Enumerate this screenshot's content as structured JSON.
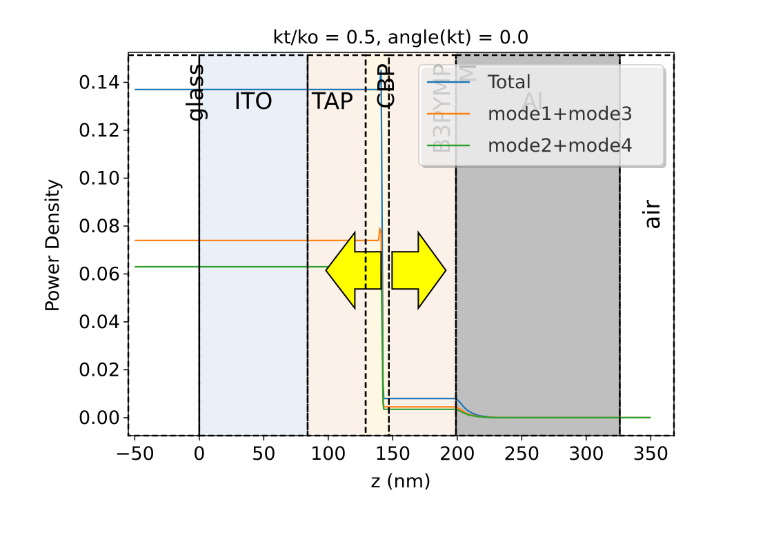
{
  "chart_data": {
    "type": "line",
    "title": "kt/ko = 0.5, angle(kt) = 0.0",
    "xlabel": "z (nm)",
    "ylabel": "Power Density",
    "xlim": [
      -55,
      368
    ],
    "ylim": [
      -0.0075,
      0.1525
    ],
    "xticks": [
      -50,
      0,
      50,
      100,
      150,
      200,
      250,
      300,
      350
    ],
    "xtick_labels": [
      "−50",
      "0",
      "50",
      "100",
      "150",
      "200",
      "250",
      "300",
      "350"
    ],
    "yticks": [
      0.0,
      0.02,
      0.04,
      0.06,
      0.08,
      0.1,
      0.12,
      0.14
    ],
    "ytick_labels": [
      "0.00",
      "0.02",
      "0.04",
      "0.06",
      "0.08",
      "0.10",
      "0.12",
      "0.14"
    ],
    "grid": false,
    "legend": {
      "position": "top-right",
      "entries": [
        "Total",
        "mode1+mode3",
        "mode2+mode4"
      ]
    },
    "layers": [
      {
        "name": "glass",
        "start": -55,
        "end": 0,
        "color": "#ffffff",
        "label_orientation": "vertical"
      },
      {
        "name": "ITO",
        "start": 0,
        "end": 84,
        "color": "#eaf0f8",
        "label_orientation": "horizontal"
      },
      {
        "name": "TAPC",
        "display": "TAP",
        "start": 84,
        "end": 129,
        "color": "#fcf1e9",
        "label_orientation": "horizontal"
      },
      {
        "name": "CBP",
        "start": 129,
        "end": 147,
        "color": "#fdf7e4",
        "label_orientation": "vertical"
      },
      {
        "name": "B3PYMPM",
        "display_lines": [
          "B3PYMP",
          "M"
        ],
        "start": 147,
        "end": 199,
        "color": "#fcf1e9",
        "label_orientation": "vertical"
      },
      {
        "name": "Al",
        "start": 199,
        "end": 326,
        "color": "#bfbfbf",
        "label_orientation": "horizontal"
      },
      {
        "name": "air",
        "start": 326,
        "end": 368,
        "color": "#ffffff",
        "label_orientation": "vertical"
      }
    ],
    "series": [
      {
        "name": "Total",
        "color": "#1f77b4",
        "x": [
          -50,
          139,
          140,
          141,
          142,
          142.5,
          143,
          199,
          202,
          205,
          208,
          212,
          216,
          220,
          225,
          230,
          240,
          260,
          350
        ],
        "y": [
          0.137,
          0.137,
          0.14,
          0.145,
          0.06,
          0.015,
          0.008,
          0.008,
          0.0065,
          0.0045,
          0.003,
          0.0018,
          0.001,
          0.0006,
          0.0003,
          0.0001,
          3e-05,
          0.0,
          0.0
        ]
      },
      {
        "name": "mode1+mode3",
        "color": "#ff7f0e",
        "x": [
          -50,
          139,
          140,
          141,
          142,
          142.5,
          143,
          199,
          202,
          205,
          208,
          212,
          216,
          220,
          225,
          230,
          240,
          260,
          350
        ],
        "y": [
          0.074,
          0.074,
          0.079,
          0.077,
          0.03,
          0.008,
          0.0045,
          0.0045,
          0.0036,
          0.0025,
          0.0016,
          0.001,
          0.0006,
          0.0003,
          0.0002,
          0.0001,
          0.0,
          0.0,
          0.0
        ]
      },
      {
        "name": "mode2+mode4",
        "color": "#2ca02c",
        "x": [
          -50,
          139,
          140,
          141,
          142,
          142.5,
          143,
          199,
          202,
          205,
          208,
          212,
          216,
          220,
          225,
          230,
          240,
          260,
          350
        ],
        "y": [
          0.063,
          0.063,
          0.067,
          0.066,
          0.025,
          0.006,
          0.0035,
          0.0035,
          0.0028,
          0.002,
          0.0013,
          0.0008,
          0.0004,
          0.0003,
          0.0001,
          0.0,
          0.0,
          0.0,
          0.0
        ]
      }
    ],
    "annotations": [
      {
        "type": "double-arrow",
        "color": "#ffff00",
        "center_x": 142
      }
    ]
  }
}
